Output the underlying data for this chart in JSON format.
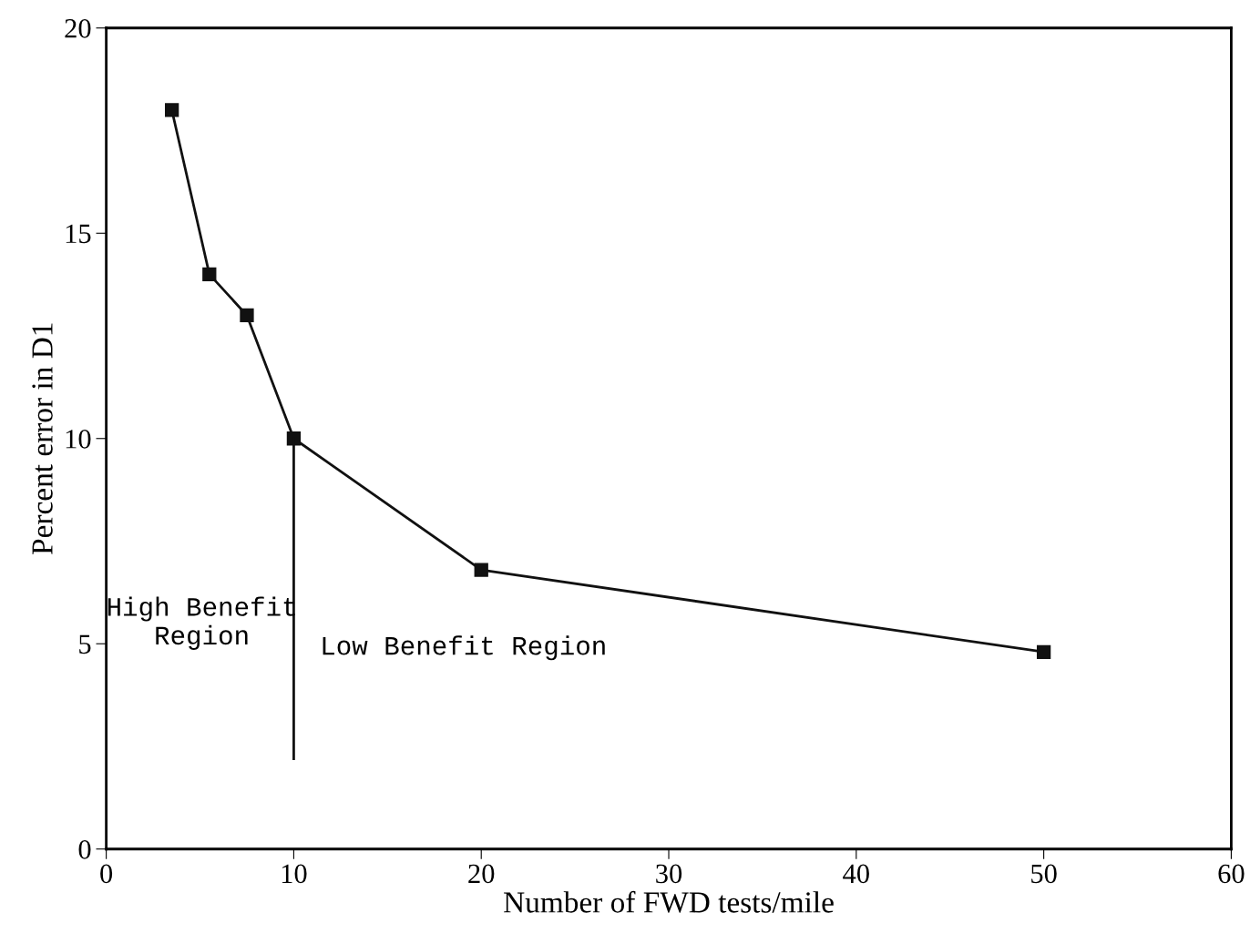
{
  "chart_data": {
    "type": "line",
    "xlabel": "Number of FWD tests/mile",
    "ylabel": "Percent error in D1",
    "series": [
      {
        "color": "#111111",
        "x": [
          3.5,
          5.5,
          7.5,
          10,
          20,
          50
        ],
        "values": [
          18,
          14,
          13,
          10,
          6.8,
          4.8
        ],
        "marker": "square"
      },
      {
        "color": "#111111",
        "x": [
          10,
          10
        ],
        "values": [
          10,
          2.2
        ],
        "marker": "none"
      }
    ],
    "annotations": [
      "High Benefit\nRegion",
      "Low Benefit Region"
    ],
    "xlim": [
      0,
      60
    ],
    "xticks": [
      0,
      10,
      20,
      30,
      40,
      50,
      60
    ],
    "ylim": [
      0,
      20
    ],
    "yticks": [
      0,
      5,
      10,
      15,
      20
    ],
    "grid": false,
    "legend": false,
    "line_style": "solid"
  }
}
